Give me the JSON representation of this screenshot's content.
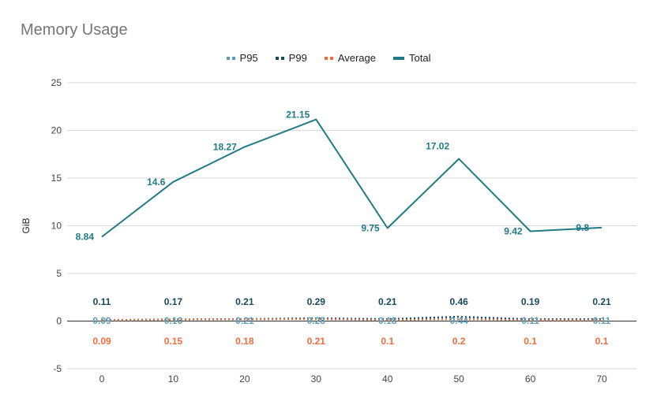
{
  "chart_data": {
    "type": "line",
    "title": "Memory Usage",
    "xlabel": "",
    "ylabel": "GiB",
    "x": [
      0,
      10,
      20,
      30,
      40,
      50,
      60,
      70
    ],
    "ylim": [
      -5,
      25
    ],
    "yticks": [
      -5,
      0,
      5,
      10,
      15,
      20,
      25
    ],
    "grid": true,
    "legend_position": "top",
    "series": [
      {
        "name": "P95",
        "color": "#5b9db6",
        "style": "dotted",
        "values": [
          0.09,
          0.16,
          0.21,
          0.28,
          0.18,
          0.44,
          0.11,
          0.11
        ],
        "labels": [
          "0.09",
          "0.16",
          "0.21",
          "0.28",
          "0.18",
          "0.44",
          "0.11",
          "0.11"
        ]
      },
      {
        "name": "P99",
        "color": "#164a5c",
        "style": "dotted",
        "values": [
          0.11,
          0.17,
          0.21,
          0.29,
          0.21,
          0.46,
          0.19,
          0.21
        ],
        "labels": [
          "0.11",
          "0.17",
          "0.21",
          "0.29",
          "0.21",
          "0.46",
          "0.19",
          "0.21"
        ]
      },
      {
        "name": "Average",
        "color": "#f26c3c",
        "style": "dotted",
        "values": [
          0.09,
          0.15,
          0.18,
          0.21,
          0.1,
          0.2,
          0.1,
          0.1
        ],
        "labels": [
          "0.09",
          "0.15",
          "0.18",
          "0.21",
          "0.1",
          "0.2",
          "0.1",
          "0.1"
        ]
      },
      {
        "name": "Total",
        "color": "#217b85",
        "style": "solid",
        "values": [
          8.84,
          14.6,
          18.27,
          21.15,
          9.75,
          17.02,
          9.42,
          9.8
        ],
        "labels": [
          "8.84",
          "14.6",
          "18.27",
          "21.15",
          "9.75",
          "17.02",
          "9.42",
          "9.8"
        ]
      }
    ]
  }
}
